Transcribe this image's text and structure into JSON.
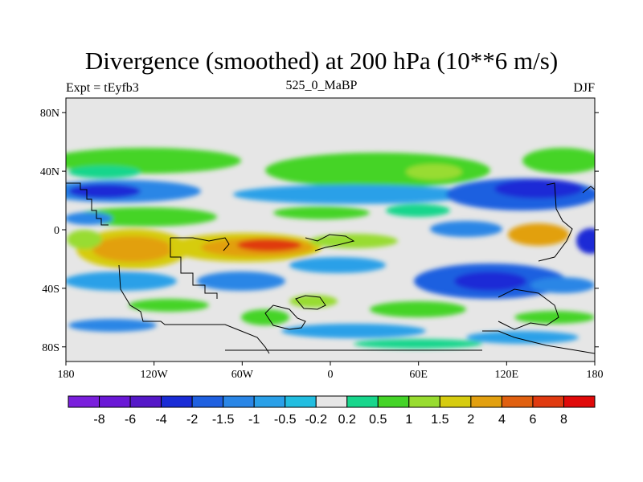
{
  "title": "Divergence (smoothed) at 200 hPa (10**6 m/s)",
  "subtitle_left": "Expt = tEyfb3",
  "subtitle_center": "525_0_MaBP",
  "subtitle_right": "DJF",
  "y_axis_labels": [
    "80N",
    "40N",
    "0",
    "40S",
    "80S"
  ],
  "x_axis_labels": [
    "180",
    "120W",
    "60W",
    "0",
    "60E",
    "120E",
    "180"
  ],
  "colorbar": {
    "labels": [
      "-8",
      "-6",
      "-4",
      "-2",
      "-1.5",
      "-1",
      "-0.5",
      "-0.2",
      "0.2",
      "0.5",
      "1",
      "1.5",
      "2",
      "4",
      "6",
      "8"
    ],
    "colors": [
      "#7a1fdc",
      "#6a18d6",
      "#5518c8",
      "#1a2cd6",
      "#1f60e0",
      "#2a86e6",
      "#2aa0e8",
      "#22bde0",
      "#e6e6e6",
      "#18d68c",
      "#44d428",
      "#98dc30",
      "#d6cc10",
      "#e2a010",
      "#e06010",
      "#e03a10",
      "#e00a0a"
    ]
  },
  "chart_data": {
    "type": "heatmap",
    "title": "Divergence (smoothed) at 200 hPa (10**6 m/s)",
    "x_range": [
      -180,
      180
    ],
    "y_range": [
      -90,
      90
    ],
    "x_ticks": [
      -180,
      -120,
      -60,
      0,
      60,
      120,
      180
    ],
    "y_ticks": [
      80,
      40,
      0,
      -40,
      -80
    ],
    "levels": [
      -8,
      -6,
      -4,
      -2,
      -1.5,
      -1,
      -0.5,
      -0.2,
      0.2,
      0.5,
      1,
      1.5,
      2,
      4,
      6,
      8
    ],
    "season": "DJF",
    "experiment": "tEyfb3"
  }
}
